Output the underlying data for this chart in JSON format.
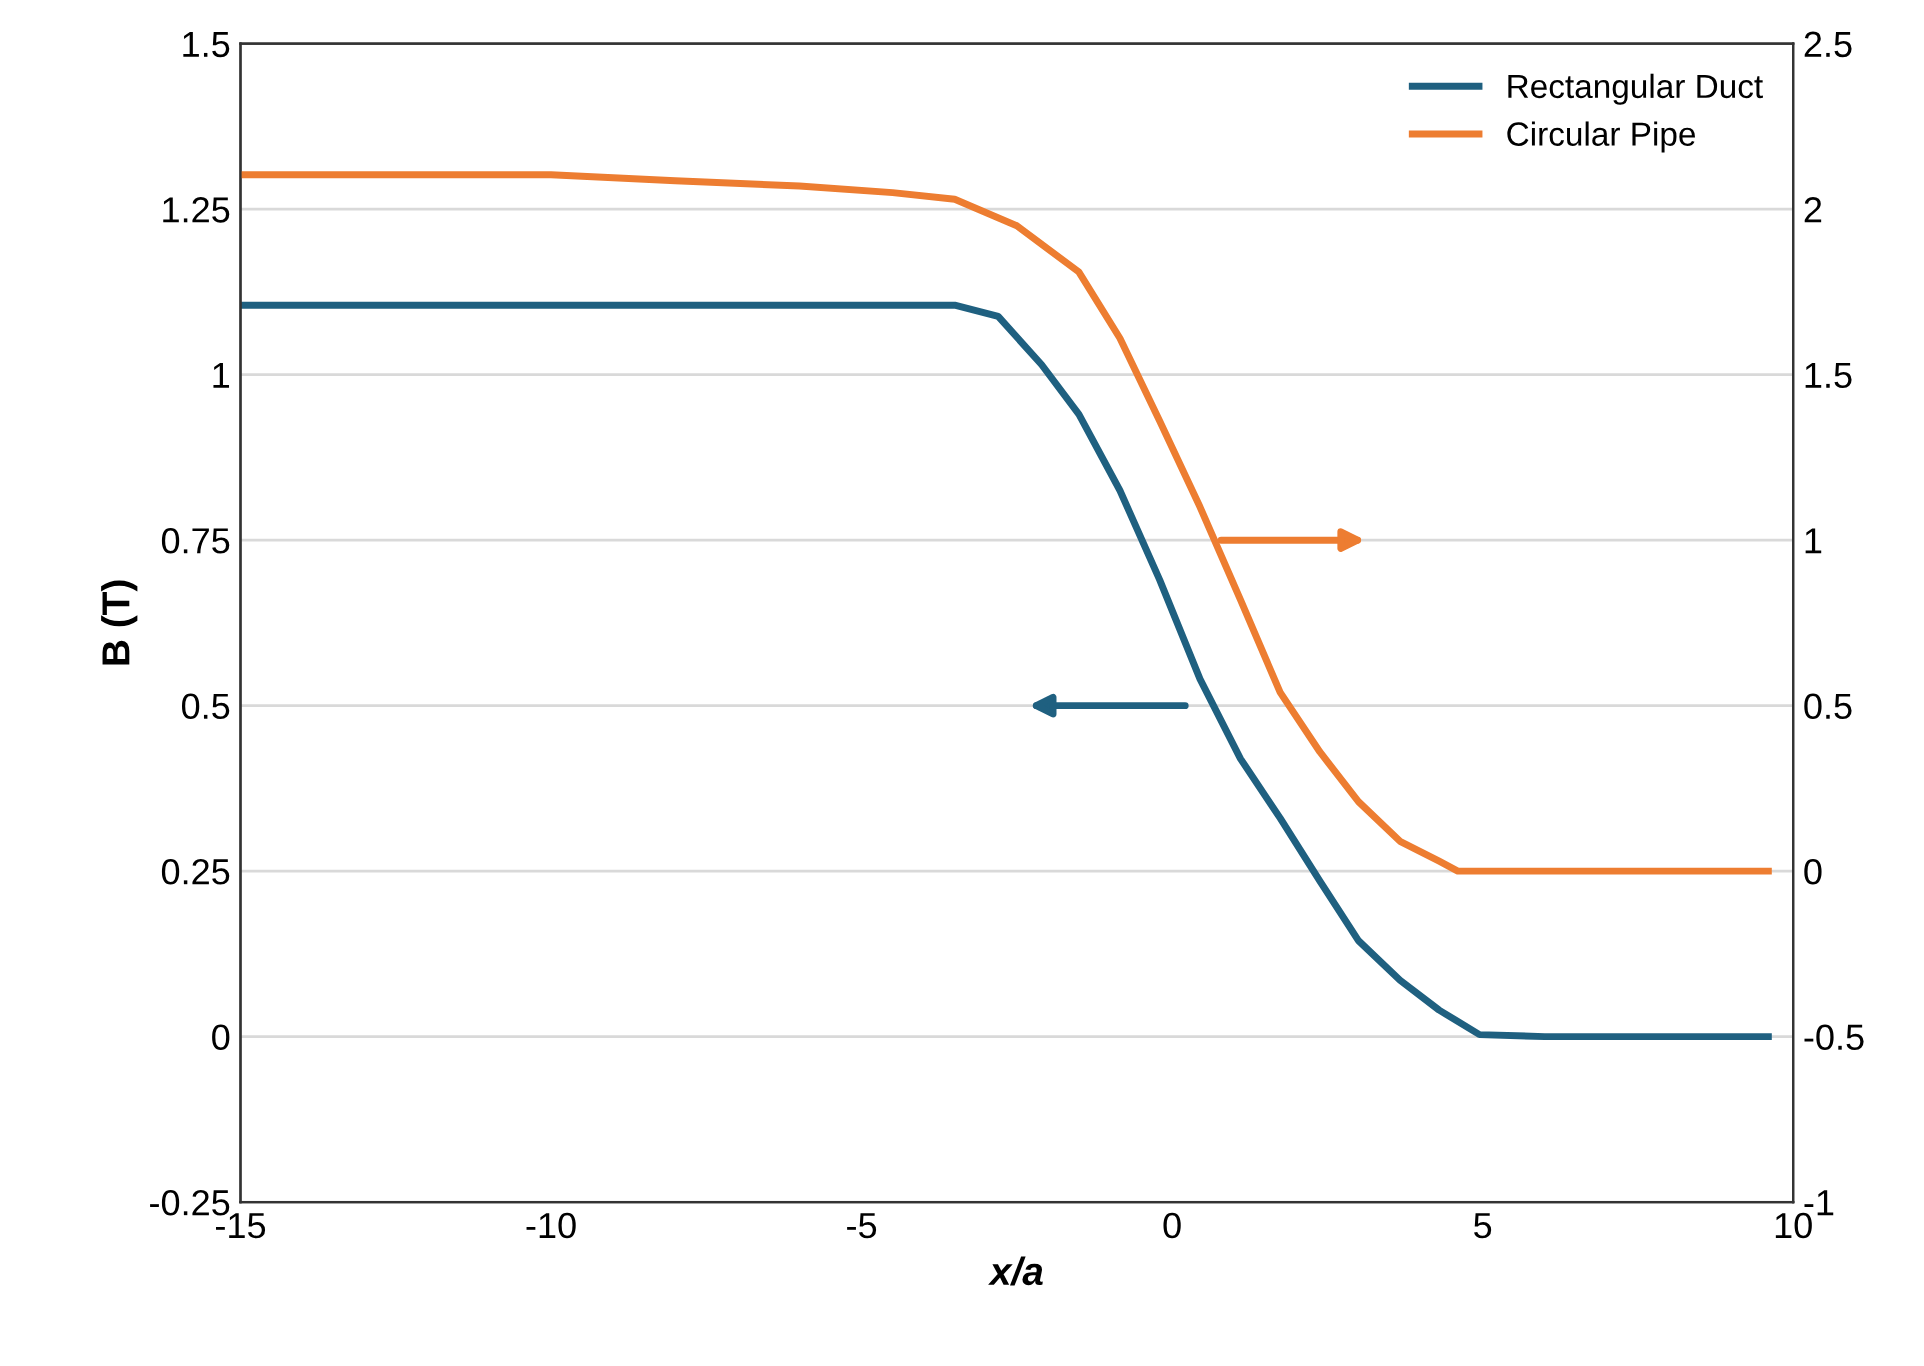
{
  "chart_data": {
    "type": "line",
    "xlabel": "x/a",
    "ylabel": "B (T)",
    "xlim": [
      -15,
      10
    ],
    "xticks": [
      -15,
      -10,
      -5,
      0,
      5,
      10
    ],
    "ylim": [
      -0.25,
      1.5
    ],
    "yticks": [
      -0.25,
      0,
      0.25,
      0.5,
      0.75,
      1,
      1.25,
      1.5
    ],
    "y2lim": [
      -1,
      2.5
    ],
    "y2ticks": [
      -1,
      -0.5,
      0,
      0.5,
      1,
      1.5,
      2,
      2.5
    ],
    "grid": "y",
    "legend": "top right",
    "marker": "none",
    "line_style": "solid",
    "series": [
      {
        "name": "Rectangular Duct",
        "color": "#1f6080",
        "x": [
          -15,
          -10,
          -5,
          -3.5,
          -2.8,
          -2.1,
          -1.5,
          -0.84,
          -0.2,
          0.45,
          1.1,
          1.74,
          2.38,
          3.0,
          3.67,
          4.3,
          4.95,
          6,
          9.6
        ],
        "values": [
          1.105,
          1.105,
          1.105,
          1.105,
          1.088,
          1.015,
          0.94,
          0.825,
          0.69,
          0.54,
          0.42,
          0.33,
          0.235,
          0.145,
          0.085,
          0.04,
          0.003,
          0,
          0
        ]
      },
      {
        "name": "Circular Pipe",
        "color": "#ed7d31",
        "axis": "y2",
        "x": [
          -15,
          -10,
          -8,
          -6,
          -4.5,
          -3.5,
          -2.5,
          -1.5,
          -0.84,
          -0.2,
          0.45,
          1.1,
          1.74,
          2.38,
          3.0,
          3.67,
          4.3,
          4.6,
          9.6
        ],
        "values": [
          2.104,
          2.104,
          2.086,
          2.07,
          2.05,
          2.03,
          1.95,
          1.81,
          1.61,
          1.36,
          1.1,
          0.82,
          0.54,
          0.36,
          0.21,
          0.09,
          0.03,
          0,
          0
        ]
      }
    ]
  }
}
